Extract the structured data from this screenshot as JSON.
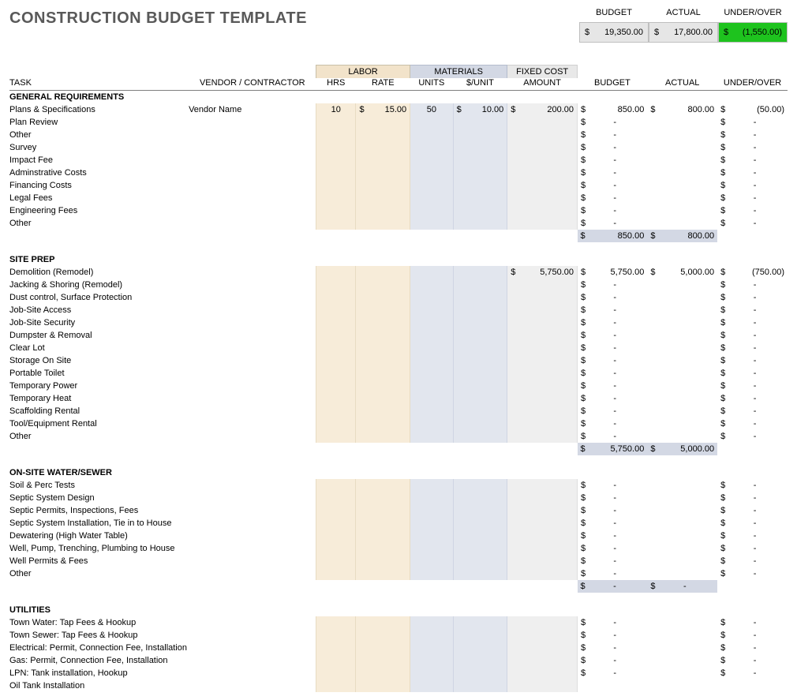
{
  "title": "CONSTRUCTION BUDGET TEMPLATE",
  "topTotals": {
    "labels": {
      "budget": "BUDGET",
      "actual": "ACTUAL",
      "uo": "UNDER/OVER"
    },
    "budget": "19,350.00",
    "actual": "17,800.00",
    "uo": "(1,550.00)",
    "bg": {
      "budget": "#e6e6e6",
      "actual": "#e6e6e6",
      "uo": "#1ec31e"
    }
  },
  "groupHeaders": {
    "labor": "LABOR",
    "materials": "MATERIALS",
    "fixed": "FIXED COST"
  },
  "columns": {
    "task": "TASK",
    "vendor": "VENDOR / CONTRACTOR",
    "hrs": "HRS",
    "rate": "RATE",
    "units": "UNITS",
    "punit": "$/UNIT",
    "amount": "AMOUNT",
    "budget": "BUDGET",
    "actual": "ACTUAL",
    "uo": "UNDER/OVER"
  },
  "sections": [
    {
      "name": "GENERAL REQUIREMENTS",
      "rows": [
        {
          "task": "Plans & Specifications",
          "vendor": "Vendor Name",
          "hrs": "10",
          "rate": "15.00",
          "units": "50",
          "punit": "10.00",
          "amount": "200.00",
          "budget": "850.00",
          "actual": "800.00",
          "uo": "(50.00)"
        },
        {
          "task": "Plan Review",
          "budget": "-",
          "uo": "-"
        },
        {
          "task": "Other",
          "budget": "-",
          "uo": "-"
        },
        {
          "task": "Survey",
          "budget": "-",
          "uo": "-"
        },
        {
          "task": "Impact Fee",
          "budget": "-",
          "uo": "-"
        },
        {
          "task": "Adminstrative Costs",
          "budget": "-",
          "uo": "-"
        },
        {
          "task": "Financing Costs",
          "budget": "-",
          "uo": "-"
        },
        {
          "task": "Legal Fees",
          "budget": "-",
          "uo": "-"
        },
        {
          "task": "Engineering Fees",
          "budget": "-",
          "uo": "-"
        },
        {
          "task": "Other",
          "budget": "-",
          "uo": "-"
        }
      ],
      "subtotal": {
        "budget": "850.00",
        "actual": "800.00"
      }
    },
    {
      "name": "SITE PREP",
      "rows": [
        {
          "task": "Demolition (Remodel)",
          "amount": "5,750.00",
          "budget": "5,750.00",
          "actual": "5,000.00",
          "uo": "(750.00)"
        },
        {
          "task": "Jacking & Shoring (Remodel)",
          "budget": "-",
          "uo": "-"
        },
        {
          "task": "Dust control, Surface Protection",
          "budget": "-",
          "uo": "-"
        },
        {
          "task": "Job-Site Access",
          "budget": "-",
          "uo": "-"
        },
        {
          "task": "Job-Site Security",
          "budget": "-",
          "uo": "-"
        },
        {
          "task": "Dumpster & Removal",
          "budget": "-",
          "uo": "-"
        },
        {
          "task": "Clear Lot",
          "budget": "-",
          "uo": "-"
        },
        {
          "task": "Storage On Site",
          "budget": "-",
          "uo": "-"
        },
        {
          "task": "Portable Toilet",
          "budget": "-",
          "uo": "-"
        },
        {
          "task": "Temporary Power",
          "budget": "-",
          "uo": "-"
        },
        {
          "task": "Temporary Heat",
          "budget": "-",
          "uo": "-"
        },
        {
          "task": "Scaffolding Rental",
          "budget": "-",
          "uo": "-"
        },
        {
          "task": "Tool/Equipment Rental",
          "budget": "-",
          "uo": "-"
        },
        {
          "task": "Other",
          "budget": "-",
          "uo": "-"
        }
      ],
      "subtotal": {
        "budget": "5,750.00",
        "actual": "5,000.00"
      }
    },
    {
      "name": "ON-SITE WATER/SEWER",
      "rows": [
        {
          "task": "Soil & Perc Tests",
          "budget": "-",
          "uo": "-"
        },
        {
          "task": "Septic System Design",
          "budget": "-",
          "uo": "-"
        },
        {
          "task": "Septic Permits, Inspections, Fees",
          "budget": "-",
          "uo": "-"
        },
        {
          "task": "Septic System Installation, Tie in to House",
          "budget": "-",
          "uo": "-"
        },
        {
          "task": "Dewatering (High Water Table)",
          "budget": "-",
          "uo": "-"
        },
        {
          "task": "Well, Pump, Trenching, Plumbing to House",
          "budget": "-",
          "uo": "-"
        },
        {
          "task": "Well Permits & Fees",
          "budget": "-",
          "uo": "-"
        },
        {
          "task": "Other",
          "budget": "-",
          "uo": "-"
        }
      ],
      "subtotal": {
        "budget": "-",
        "actual": "-"
      }
    },
    {
      "name": "UTILITIES",
      "rows": [
        {
          "task": "Town Water: Tap Fees & Hookup",
          "budget": "-",
          "uo": "-"
        },
        {
          "task": "Town Sewer: Tap Fees & Hookup",
          "budget": "-",
          "uo": "-"
        },
        {
          "task": "Electrical: Permit, Connection Fee, Installation",
          "budget": "-",
          "uo": "-"
        },
        {
          "task": "Gas: Permit, Connection Fee, Installation",
          "budget": "-",
          "uo": "-"
        },
        {
          "task": "LPN: Tank installation, Hookup",
          "budget": "-",
          "uo": "-"
        },
        {
          "task": "Oil Tank Installation"
        }
      ],
      "subtotal": null
    }
  ]
}
